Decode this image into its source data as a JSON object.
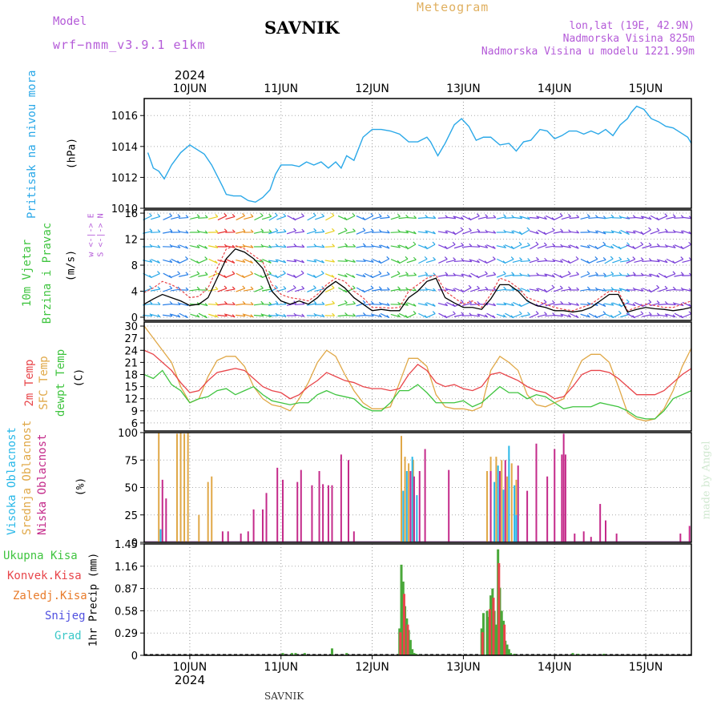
{
  "header": {
    "model_label": "Model",
    "model_name": "wrf−nmm_v3.9.1  e1km",
    "station_title": "SAVNIK",
    "meteogram_label": "Meteogram",
    "lonlat": "lon,lat (19E, 42.9N)",
    "elevation": "Nadmorska Visina 825m",
    "model_elevation": "Nadmorska Visina u modelu 1221.99m",
    "footer_station": "SAVNIK",
    "watermark": "made by Angel"
  },
  "time_axis": {
    "year": "2024",
    "day_labels": [
      "10JUN",
      "11JUN",
      "12JUN",
      "13JUN",
      "14JUN",
      "15JUN"
    ]
  },
  "colors": {
    "pressure": "#2aa8e8",
    "temp2m": "#e8454a",
    "sfc_temp": "#e0a847",
    "dewpoint": "#3fc43f",
    "high_cloud": "#29b8e8",
    "mid_cloud": "#e0a847",
    "low_cloud": "#c42a8a",
    "total_precip": "#4aa83a",
    "conv_precip": "#e8454a",
    "strat_precip": "#e87b2a",
    "snow": "#5050e0",
    "graupel": "#3cc8c8",
    "wind_black": "#000000",
    "wind_red": "#e8454a"
  },
  "chart_data": [
    {
      "type": "line",
      "panel": "pressure",
      "label_lines": [
        "Pritisak na nivou mora"
      ],
      "unit": "(hPa)",
      "y_ticks": [
        "1016",
        "1014",
        "1012",
        "1010"
      ],
      "ylim": [
        1010,
        1017.1
      ],
      "x_days": [
        9.54,
        9.6,
        9.66,
        9.72,
        9.8,
        9.9,
        10.0,
        10.08,
        10.16,
        10.24,
        10.3,
        10.36,
        10.4,
        10.48,
        10.56,
        10.64,
        10.72,
        10.8,
        10.88,
        10.94,
        11.0,
        11.06,
        11.12,
        11.2,
        11.28,
        11.36,
        11.44,
        11.52,
        11.6,
        11.66,
        11.72,
        11.8,
        11.9,
        12.0,
        12.1,
        12.2,
        12.3,
        12.4,
        12.5,
        12.6,
        12.64,
        12.72,
        12.8,
        12.9,
        12.98,
        13.06,
        13.14,
        13.22,
        13.3,
        13.4,
        13.5,
        13.58,
        13.66,
        13.74,
        13.84,
        13.92,
        14.0,
        14.08,
        14.16,
        14.24,
        14.32,
        14.4,
        14.48,
        14.56,
        14.64,
        14.72,
        14.8,
        14.84,
        14.9,
        14.98,
        15.06,
        15.14,
        15.22,
        15.3,
        15.38,
        15.46,
        15.5
      ],
      "y_values": [
        1013.6,
        1012.6,
        1012.4,
        1011.9,
        1012.8,
        1013.6,
        1014.1,
        1013.8,
        1013.5,
        1012.8,
        1012.1,
        1011.4,
        1010.9,
        1010.8,
        1010.8,
        1010.5,
        1010.4,
        1010.7,
        1011.2,
        1012.2,
        1012.8,
        1012.8,
        1012.8,
        1012.7,
        1013.0,
        1012.8,
        1013.0,
        1012.6,
        1013.0,
        1012.6,
        1013.4,
        1013.1,
        1014.6,
        1015.1,
        1015.1,
        1015.0,
        1014.8,
        1014.3,
        1014.3,
        1014.6,
        1014.3,
        1013.4,
        1014.2,
        1015.4,
        1015.8,
        1015.3,
        1014.4,
        1014.6,
        1014.6,
        1014.1,
        1014.2,
        1013.7,
        1014.3,
        1014.4,
        1015.1,
        1015.0,
        1014.5,
        1014.7,
        1015.0,
        1015.0,
        1014.8,
        1015.0,
        1014.8,
        1015.1,
        1014.7,
        1015.4,
        1015.8,
        1016.2,
        1016.6,
        1016.4,
        1015.8,
        1015.6,
        1015.3,
        1015.2,
        1014.9,
        1014.6,
        1014.2
      ]
    },
    {
      "type": "line",
      "panel": "wind",
      "label_lines": [
        "10m Vjetar",
        "Brzina i Pravac"
      ],
      "unit": "(m/s)",
      "legend_compass": "w  <-|-> E",
      "legend_compass_v": "S <-|-> N",
      "y_ticks": [
        "16",
        "12",
        "8",
        "4",
        "0"
      ],
      "ylim": [
        -0.5,
        16.5
      ],
      "x_days": [
        9.5,
        9.6,
        9.7,
        9.8,
        9.9,
        10.0,
        10.1,
        10.2,
        10.3,
        10.4,
        10.5,
        10.6,
        10.7,
        10.8,
        10.9,
        11.0,
        11.1,
        11.2,
        11.3,
        11.4,
        11.5,
        11.6,
        11.7,
        11.8,
        11.9,
        12.0,
        12.1,
        12.2,
        12.3,
        12.4,
        12.5,
        12.6,
        12.7,
        12.8,
        12.9,
        13.0,
        13.1,
        13.2,
        13.3,
        13.4,
        13.5,
        13.6,
        13.7,
        13.8,
        13.9,
        14.0,
        14.1,
        14.2,
        14.3,
        14.4,
        14.5,
        14.6,
        14.7,
        14.8,
        14.9,
        15.0,
        15.1,
        15.2,
        15.3,
        15.4,
        15.5
      ],
      "series": [
        {
          "name": "",
          "values": [
            3.8,
            4.5,
            5.5,
            5.0,
            4.2,
            3.0,
            3.2,
            4.5,
            7.5,
            10.5,
            11.0,
            10.5,
            9.5,
            8.5,
            5.0,
            3.5,
            3.0,
            2.8,
            2.5,
            3.5,
            5.0,
            6.0,
            5.5,
            4.0,
            3.0,
            1.5,
            1.5,
            1.4,
            1.5,
            4.0,
            5.0,
            6.0,
            6.5,
            4.0,
            3.0,
            2.0,
            2.5,
            1.5,
            3.5,
            6.0,
            5.5,
            4.5,
            3.0,
            2.5,
            2.0,
            1.5,
            1.2,
            1.0,
            1.5,
            2.0,
            3.0,
            4.0,
            4.0,
            1.0,
            1.5,
            2.0,
            1.8,
            1.5,
            1.5,
            2.0,
            2.5
          ]
        },
        {
          "name": "",
          "values": [
            2.0,
            2.8,
            3.5,
            3.0,
            2.5,
            1.8,
            2.0,
            3.0,
            6.0,
            9.0,
            10.5,
            10.0,
            9.0,
            7.5,
            4.0,
            2.5,
            2.0,
            2.5,
            2.0,
            3.0,
            4.5,
            5.5,
            4.5,
            3.0,
            2.0,
            1.0,
            1.2,
            1.0,
            1.0,
            3.0,
            4.0,
            5.5,
            6.0,
            3.0,
            2.2,
            1.5,
            1.5,
            1.2,
            2.8,
            5.0,
            5.0,
            4.0,
            2.5,
            1.8,
            1.5,
            1.0,
            1.0,
            0.8,
            1.0,
            1.5,
            2.5,
            3.5,
            3.5,
            0.8,
            1.2,
            1.5,
            1.3,
            1.2,
            1.0,
            1.2,
            1.5
          ]
        }
      ],
      "direction_bands": [
        {
          "x_start": 9.5,
          "x_end": 9.72,
          "color": "#2aa8e8"
        },
        {
          "x_start": 9.72,
          "x_end": 10.02,
          "color": "#2a80e8"
        },
        {
          "x_start": 10.02,
          "x_end": 10.22,
          "color": "#3fc43f"
        },
        {
          "x_start": 10.22,
          "x_end": 10.32,
          "color": "#e8d020"
        },
        {
          "x_start": 10.32,
          "x_end": 10.52,
          "color": "#e83030"
        },
        {
          "x_start": 10.52,
          "x_end": 10.72,
          "color": "#e89020"
        },
        {
          "x_start": 10.72,
          "x_end": 10.88,
          "color": "#3fc43f"
        },
        {
          "x_start": 10.88,
          "x_end": 11.08,
          "color": "#2aa8e8"
        },
        {
          "x_start": 11.08,
          "x_end": 11.3,
          "color": "#7a40d8"
        },
        {
          "x_start": 11.3,
          "x_end": 11.5,
          "color": "#2aa8e8"
        },
        {
          "x_start": 11.5,
          "x_end": 11.64,
          "color": "#e8d020"
        },
        {
          "x_start": 11.64,
          "x_end": 11.84,
          "color": "#3fc43f"
        },
        {
          "x_start": 11.84,
          "x_end": 12.22,
          "color": "#2a80e8"
        },
        {
          "x_start": 12.22,
          "x_end": 12.52,
          "color": "#3fc43f"
        },
        {
          "x_start": 12.52,
          "x_end": 12.74,
          "color": "#2aa8e8"
        },
        {
          "x_start": 12.74,
          "x_end": 13.38,
          "color": "#7a40d8"
        },
        {
          "x_start": 13.38,
          "x_end": 13.74,
          "color": "#2aa8e8"
        },
        {
          "x_start": 13.74,
          "x_end": 14.3,
          "color": "#7a40d8"
        },
        {
          "x_start": 14.3,
          "x_end": 14.56,
          "color": "#2a80e8"
        },
        {
          "x_start": 14.56,
          "x_end": 14.8,
          "color": "#2aa8e8"
        },
        {
          "x_start": 14.8,
          "x_end": 15.5,
          "color": "#7a40d8"
        }
      ]
    },
    {
      "type": "line",
      "panel": "temperature",
      "label_lines": [
        "2m Temp",
        "SFC Temp",
        "dewpt Temp"
      ],
      "unit": "(C)",
      "y_ticks": [
        "30",
        "27",
        "24",
        "21",
        "18",
        "15",
        "12",
        "9",
        "6"
      ],
      "ylim": [
        4,
        31
      ],
      "x_days": [
        9.5,
        9.6,
        9.7,
        9.8,
        9.9,
        10.0,
        10.1,
        10.2,
        10.3,
        10.4,
        10.5,
        10.6,
        10.7,
        10.8,
        10.9,
        11.0,
        11.1,
        11.2,
        11.3,
        11.4,
        11.5,
        11.6,
        11.7,
        11.8,
        11.9,
        12.0,
        12.1,
        12.2,
        12.3,
        12.4,
        12.5,
        12.6,
        12.7,
        12.8,
        12.9,
        13.0,
        13.1,
        13.2,
        13.3,
        13.4,
        13.5,
        13.6,
        13.7,
        13.8,
        13.9,
        14.0,
        14.1,
        14.2,
        14.3,
        14.4,
        14.5,
        14.6,
        14.7,
        14.8,
        14.9,
        15.0,
        15.1,
        15.2,
        15.3,
        15.4,
        15.5
      ],
      "series": [
        {
          "name": "2m Temp",
          "values": [
            24,
            23,
            21,
            19,
            16,
            13.5,
            14,
            16.5,
            18.5,
            19,
            19.5,
            19,
            17,
            15,
            14,
            13.5,
            12,
            13,
            15,
            16.5,
            18.5,
            17.5,
            16.5,
            16,
            15,
            14.5,
            14.5,
            14,
            14.5,
            18,
            20.5,
            19,
            16,
            15,
            15.5,
            14.5,
            14,
            15,
            18,
            18.5,
            17.5,
            16.5,
            15,
            14,
            13.5,
            12,
            12.5,
            15,
            18,
            19,
            19,
            18.5,
            17,
            15,
            13,
            13,
            13,
            14,
            16,
            18,
            19.5
          ]
        },
        {
          "name": "SFC Temp",
          "values": [
            30,
            27,
            24,
            21,
            15,
            11,
            12,
            17.5,
            21.5,
            22.5,
            22.5,
            20,
            15,
            12,
            10.5,
            10,
            9,
            12,
            16,
            21,
            24,
            22.5,
            18,
            14,
            11,
            9.5,
            9.5,
            10,
            16,
            22,
            22,
            20,
            13,
            10,
            9.5,
            9.5,
            9,
            10,
            19,
            22.5,
            21,
            19,
            13,
            10.5,
            10,
            11,
            12,
            17,
            21.5,
            23,
            23,
            21,
            15,
            8.5,
            7,
            6.5,
            7,
            9.5,
            14,
            20,
            24.5
          ]
        },
        {
          "name": "dewpt Temp",
          "values": [
            18,
            17,
            19,
            15.5,
            14,
            11,
            12,
            12.5,
            14,
            14.5,
            13,
            14,
            15,
            13,
            11.5,
            11,
            10.5,
            11,
            11,
            13,
            14,
            13,
            12.5,
            12,
            10,
            9,
            9,
            11,
            14,
            14,
            15.5,
            13.5,
            11,
            11,
            11,
            11.5,
            10,
            11,
            13,
            15,
            13.5,
            13.5,
            12,
            13,
            12.5,
            11,
            9.5,
            10,
            10,
            10,
            11,
            10.5,
            10,
            9,
            7.5,
            7,
            7,
            9,
            12,
            13,
            14
          ]
        }
      ]
    },
    {
      "type": "bar",
      "panel": "clouds",
      "label_lines": [
        "Visoka Oblacnost",
        "Srednja Oblacnost",
        "Niska Oblacnost"
      ],
      "unit": "(%)",
      "y_ticks": [
        "100",
        "75",
        "50",
        "25",
        "0"
      ],
      "ylim": [
        0,
        100
      ],
      "series": [
        {
          "name": "Visoka Oblacnost",
          "x_days": [
            9.68,
            12.34,
            12.38,
            12.44,
            12.49,
            13.34,
            13.38,
            13.44,
            13.5,
            13.56,
            13.58
          ],
          "values": [
            12,
            47,
            65,
            78,
            43,
            55,
            70,
            48,
            88,
            52,
            25
          ]
        },
        {
          "name": "Srednja Oblacnost",
          "x_days": [
            9.66,
            9.86,
            9.9,
            9.94,
            9.98,
            10.1,
            10.2,
            10.24,
            12.32,
            12.36,
            12.4,
            12.45,
            13.26,
            13.3,
            13.36,
            13.42,
            13.48,
            13.53,
            13.58
          ],
          "values": [
            100,
            99,
            100,
            99,
            100,
            25,
            55,
            60,
            97,
            78,
            72,
            75,
            65,
            78,
            78,
            75,
            60,
            72,
            57
          ]
        },
        {
          "name": "Niska Oblacnost",
          "x_days": [
            9.7,
            9.74,
            10.36,
            10.42,
            10.56,
            10.64,
            10.7,
            10.8,
            10.84,
            10.96,
            11.02,
            11.18,
            11.22,
            11.34,
            11.42,
            11.46,
            11.52,
            11.56,
            11.66,
            11.74,
            11.8,
            12.42,
            12.46,
            12.52,
            12.58,
            12.84,
            13.3,
            13.4,
            13.46,
            13.6,
            13.7,
            13.8,
            13.92,
            14.0,
            14.08,
            14.1,
            14.12,
            14.22,
            14.32,
            14.4,
            14.5,
            14.56,
            14.68,
            15.38,
            15.48
          ],
          "values": [
            57,
            40,
            10,
            10,
            8,
            10,
            30,
            30,
            45,
            68,
            57,
            55,
            66,
            52,
            65,
            53,
            52,
            52,
            80,
            75,
            10,
            65,
            60,
            65,
            85,
            66,
            65,
            65,
            75,
            70,
            47,
            90,
            60,
            85,
            80,
            99,
            80,
            8,
            10,
            5,
            35,
            20,
            8,
            8,
            15
          ]
        }
      ]
    },
    {
      "type": "bar",
      "panel": "precip",
      "label_lines": [
        "Ukupna Kisa",
        "Konvek.Kisa",
        "Zaledj.Kisa",
        "Snijeg",
        "Grad"
      ],
      "unit": "1hr Precip (mm)",
      "y_ticks": [
        "1.45",
        "1.16",
        "0.87",
        "0.58",
        "0.29",
        "0"
      ],
      "ylim": [
        0,
        1.45
      ],
      "series": [
        {
          "name": "Ukupna Kisa",
          "x_days": [
            12.3,
            12.32,
            12.34,
            12.36,
            12.38,
            12.4,
            12.42,
            12.44,
            12.46,
            12.48,
            12.5,
            12.52,
            13.2,
            13.22,
            13.26,
            13.28,
            13.3,
            13.32,
            13.34,
            13.36,
            13.38,
            13.4,
            13.42,
            13.44,
            13.46,
            13.48,
            13.5,
            13.52,
            13.56,
            11.02,
            11.12,
            11.16,
            11.26,
            11.56,
            11.72,
            14.2,
            14.26,
            14.54
          ],
          "values": [
            0.35,
            1.18,
            0.96,
            0.64,
            0.48,
            0.33,
            0.2,
            0.08,
            0.03,
            0.02,
            0.01,
            0.01,
            0.35,
            0.55,
            0.58,
            0.5,
            0.78,
            0.87,
            0.58,
            0.4,
            1.38,
            0.88,
            0.58,
            0.45,
            0.19,
            0.14,
            0.08,
            0.03,
            0.02,
            0.03,
            0.03,
            0.03,
            0.03,
            0.09,
            0.03,
            0.03,
            0.02,
            0.02
          ]
        },
        {
          "name": "Konvek.Kisa",
          "x_days": [
            12.31,
            12.35,
            12.39,
            13.21,
            13.29,
            13.33,
            13.39,
            13.45
          ],
          "values": [
            0.3,
            0.8,
            0.4,
            0.3,
            0.6,
            0.75,
            1.2,
            0.4
          ]
        }
      ]
    }
  ]
}
